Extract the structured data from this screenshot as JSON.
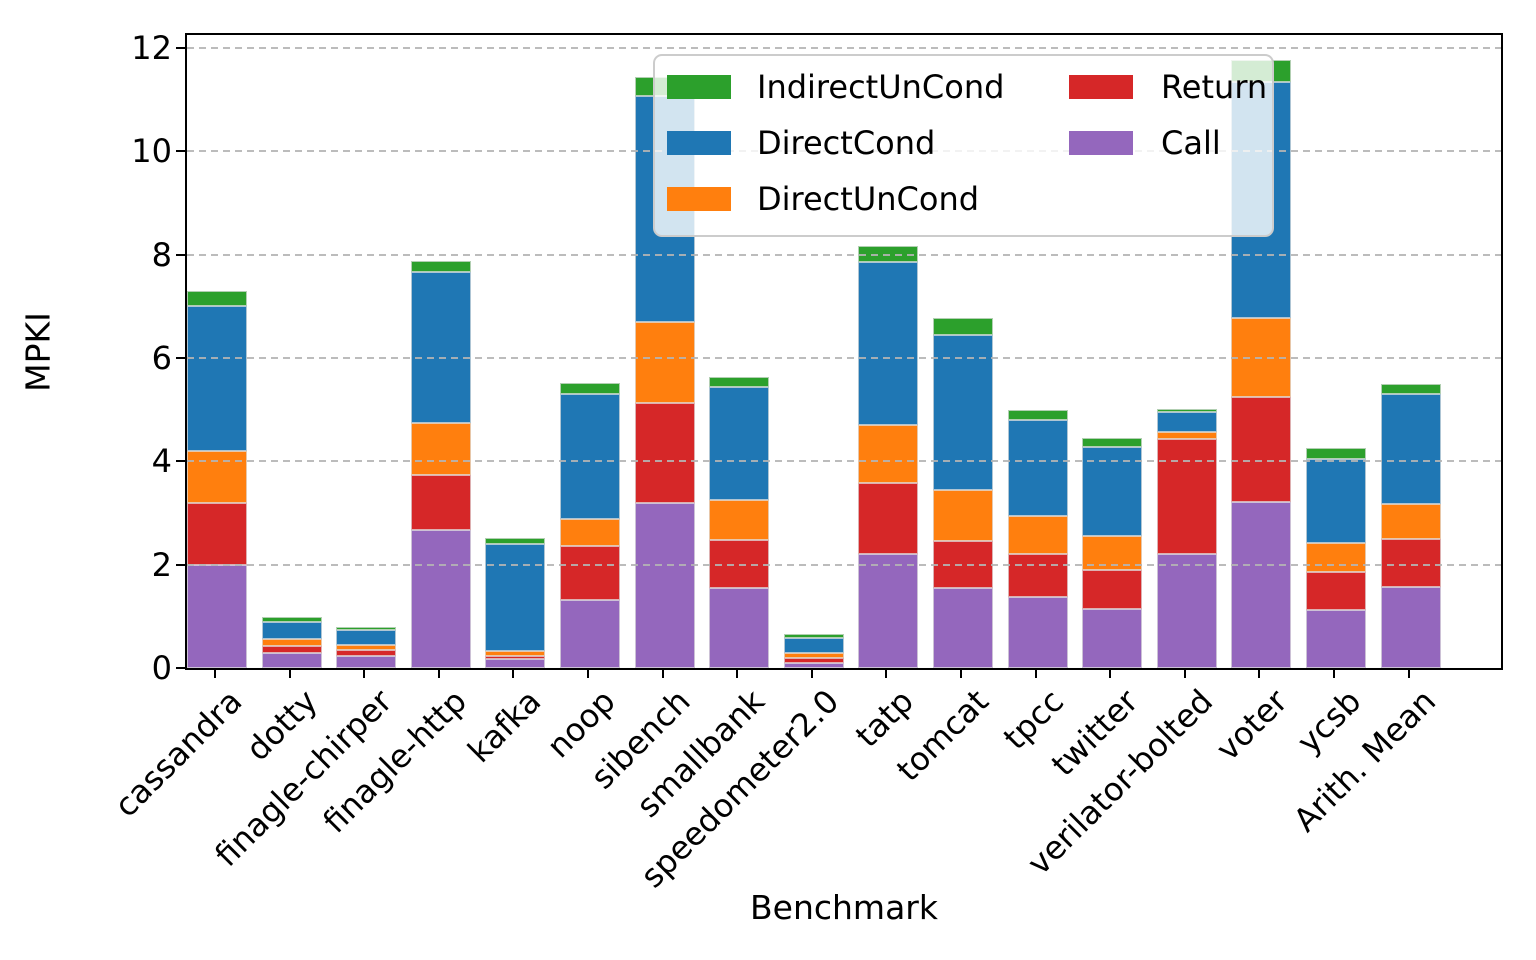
{
  "figure": {
    "background": "#ffffff"
  },
  "chart_data": {
    "type": "bar",
    "stacked": true,
    "title": "",
    "xlabel": "Benchmark",
    "ylabel": "MPKI",
    "ylim": [
      0,
      12.25
    ],
    "yticks": [
      0,
      2,
      4,
      6,
      8,
      10,
      12
    ],
    "grid": {
      "axis": "y",
      "style": "dashed",
      "color": "#b4b4b4",
      "drawn_over_bars": true
    },
    "categories": [
      "cassandra",
      "dotty",
      "finagle-chirper",
      "finagle-http",
      "kafka",
      "noop",
      "sibench",
      "smallbank",
      "speedometer2.0",
      "tatp",
      "tomcat",
      "tpcc",
      "twitter",
      "verilator-bolted",
      "voter",
      "ycsb",
      "Arith. Mean"
    ],
    "series": [
      {
        "name": "Call",
        "color": "#9467bd",
        "values": [
          2.0,
          0.3,
          0.24,
          2.68,
          0.17,
          1.32,
          3.2,
          1.54,
          0.09,
          2.21,
          1.54,
          1.37,
          1.15,
          2.2,
          3.22,
          1.12,
          1.56
        ]
      },
      {
        "name": "Return",
        "color": "#d62728",
        "values": [
          1.2,
          0.13,
          0.11,
          1.05,
          0.07,
          1.05,
          1.93,
          0.93,
          0.11,
          1.37,
          0.92,
          0.84,
          0.75,
          2.23,
          2.02,
          0.74,
          0.94
        ]
      },
      {
        "name": "DirectUnCond",
        "color": "#ff7f0e",
        "values": [
          1.0,
          0.13,
          0.1,
          1.02,
          0.09,
          0.51,
          1.57,
          0.79,
          0.1,
          1.12,
          0.98,
          0.73,
          0.66,
          0.13,
          1.53,
          0.56,
          0.68
        ]
      },
      {
        "name": "DirectCond",
        "color": "#1f77b4",
        "values": [
          2.8,
          0.34,
          0.29,
          2.92,
          2.07,
          2.42,
          4.37,
          2.18,
          0.28,
          3.15,
          3.01,
          1.86,
          1.71,
          0.4,
          4.57,
          1.62,
          2.12
        ]
      },
      {
        "name": "IndirectUnCond",
        "color": "#2ca02c",
        "values": [
          0.3,
          0.08,
          0.06,
          0.21,
          0.11,
          0.22,
          0.36,
          0.2,
          0.07,
          0.32,
          0.32,
          0.2,
          0.18,
          0.05,
          0.42,
          0.21,
          0.2
        ]
      }
    ],
    "legend": {
      "position": "upper-center",
      "columns": [
        [
          "IndirectUnCond",
          "DirectCond",
          "DirectUnCond"
        ],
        [
          "Return",
          "Call"
        ]
      ]
    }
  }
}
